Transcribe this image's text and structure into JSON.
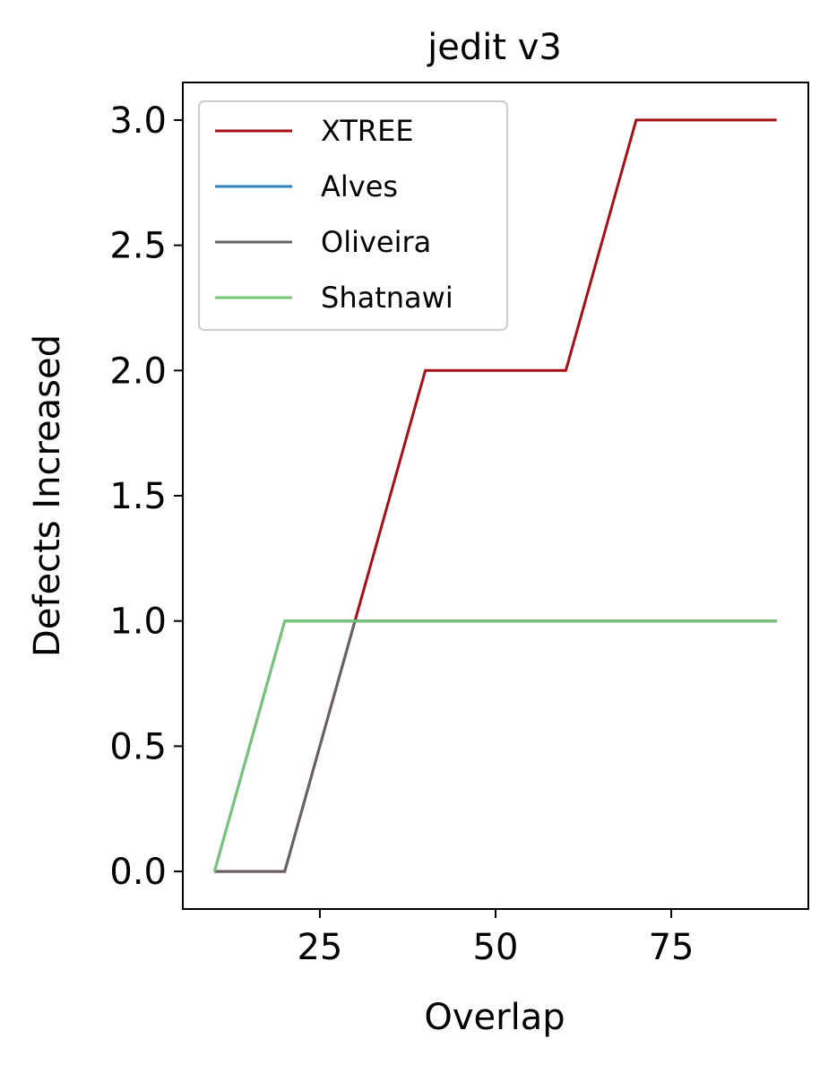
{
  "chart_data": {
    "type": "line",
    "title": "jedit v3",
    "xlabel": "Overlap",
    "ylabel": "Defects Increased",
    "xlim": [
      5.5,
      94.5
    ],
    "ylim": [
      -0.15,
      3.15
    ],
    "xticks": [
      25,
      50,
      75
    ],
    "xtick_labels": [
      "25",
      "50",
      "75"
    ],
    "yticks": [
      0.0,
      0.5,
      1.0,
      1.5,
      2.0,
      2.5,
      3.0
    ],
    "ytick_labels": [
      "0.0",
      "0.5",
      "1.0",
      "1.5",
      "2.0",
      "2.5",
      "3.0"
    ],
    "grid": false,
    "legend_position": "top-left",
    "series": [
      {
        "name": "XTREE",
        "color": "#a50f15",
        "x": [
          10,
          20,
          30,
          40,
          50,
          60,
          70,
          80,
          90
        ],
        "y": [
          0,
          0,
          1,
          2,
          2,
          2,
          3,
          3,
          3
        ]
      },
      {
        "name": "Alves",
        "color": "#3182bd",
        "x": [
          10,
          20,
          30,
          40,
          50,
          60,
          70,
          80,
          90
        ],
        "y": [
          0,
          1,
          1,
          1,
          1,
          1,
          1,
          1,
          1
        ]
      },
      {
        "name": "Oliveira",
        "color": "#636363",
        "x": [
          10,
          20,
          30,
          40,
          50,
          60,
          70,
          80,
          90
        ],
        "y": [
          0,
          0,
          1,
          1,
          1,
          1,
          1,
          1,
          1
        ]
      },
      {
        "name": "Shatnawi",
        "color": "#74c476",
        "x": [
          10,
          20,
          30,
          40,
          50,
          60,
          70,
          80,
          90
        ],
        "y": [
          0,
          1,
          1,
          1,
          1,
          1,
          1,
          1,
          1
        ]
      }
    ]
  }
}
